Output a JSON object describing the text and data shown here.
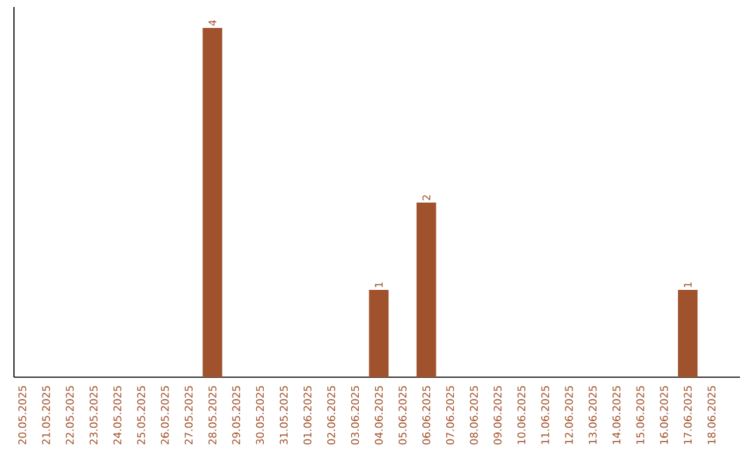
{
  "chart_data": {
    "type": "bar",
    "categories": [
      "20.05.2025",
      "21.05.2025",
      "22.05.2025",
      "23.05.2025",
      "24.05.2025",
      "25.05.2025",
      "26.05.2025",
      "27.05.2025",
      "28.05.2025",
      "29.05.2025",
      "30.05.2025",
      "31.05.2025",
      "01.06.2025",
      "02.06.2025",
      "03.06.2025",
      "04.06.2025",
      "05.06.2025",
      "06.06.2025",
      "07.06.2025",
      "08.06.2025",
      "09.06.2025",
      "10.06.2025",
      "11.06.2025",
      "12.06.2025",
      "13.06.2025",
      "14.06.2025",
      "15.06.2025",
      "16.06.2025",
      "17.06.2025",
      "18.06.2025"
    ],
    "values": [
      0,
      0,
      0,
      0,
      0,
      0,
      0,
      0,
      4,
      0,
      0,
      0,
      0,
      0,
      0,
      1,
      0,
      2,
      0,
      0,
      0,
      0,
      0,
      0,
      0,
      0,
      0,
      0,
      1,
      0
    ],
    "value_labels": [
      null,
      null,
      null,
      null,
      null,
      null,
      null,
      null,
      "4",
      null,
      null,
      null,
      null,
      null,
      null,
      "1",
      null,
      "2",
      null,
      null,
      null,
      null,
      null,
      null,
      null,
      null,
      null,
      null,
      "1",
      null
    ],
    "color": "#a0522d"
  }
}
